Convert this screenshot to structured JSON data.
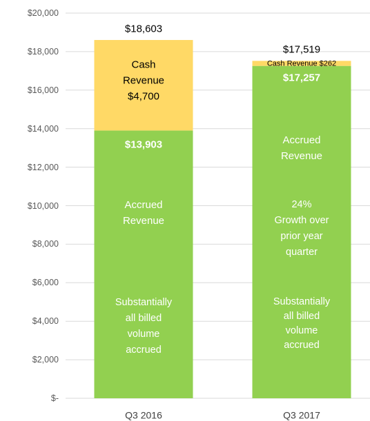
{
  "chart_data": {
    "type": "stacked_bar",
    "categories": [
      "Q3 2016",
      "Q3 2017"
    ],
    "series": [
      {
        "name": "Accrued Revenue",
        "color": "#92d050",
        "values": [
          13903,
          17257
        ],
        "value_labels": [
          "$13,903",
          "$17,257"
        ]
      },
      {
        "name": "Cash Revenue",
        "color": "#ffd966",
        "values": [
          4700,
          262
        ],
        "value_labels": [
          "$4,700",
          "$262"
        ]
      }
    ],
    "totals": {
      "values": [
        18603,
        17519
      ],
      "value_labels": [
        "$18,603",
        "$17,519"
      ]
    },
    "annotations": [
      [
        [
          "Substantially",
          "all billed",
          "volume",
          "accrued"
        ]
      ],
      [
        [
          "24%",
          "Growth over",
          "prior year",
          "quarter"
        ],
        [
          "Substantially",
          "all billed",
          "volume",
          "accrued"
        ]
      ]
    ],
    "ylim": [
      0,
      20000
    ],
    "yticks": [
      {
        "value": 0,
        "label": "$-"
      },
      {
        "value": 2000,
        "label": "$2,000"
      },
      {
        "value": 4000,
        "label": "$4,000"
      },
      {
        "value": 6000,
        "label": "$6,000"
      },
      {
        "value": 8000,
        "label": "$8,000"
      },
      {
        "value": 10000,
        "label": "$10,000"
      },
      {
        "value": 12000,
        "label": "$12,000"
      },
      {
        "value": 14000,
        "label": "$14,000"
      },
      {
        "value": 16000,
        "label": "$16,000"
      },
      {
        "value": 18000,
        "label": "$18,000"
      },
      {
        "value": 20000,
        "label": "$20,000"
      }
    ],
    "grid": true
  }
}
